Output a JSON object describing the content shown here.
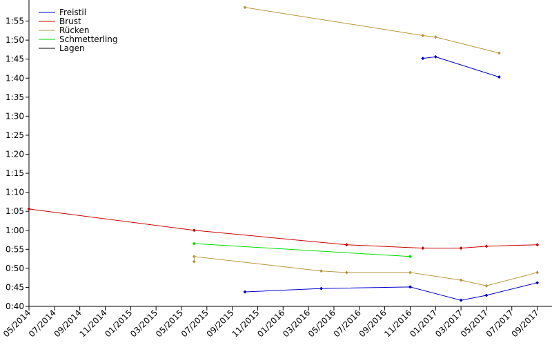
{
  "chart_data": {
    "type": "line",
    "series": [
      {
        "name": "Freistil",
        "color": "#0000cc",
        "x": [
          "2015-10",
          "2016-04",
          "2016-11",
          "2017-03",
          "2017-05",
          "2017-09",
          null,
          "2016-12",
          "2017-01",
          "2017-06"
        ],
        "values": [
          43.8,
          44.7,
          45.1,
          41.6,
          42.9,
          46.2,
          null,
          105.2,
          105.6,
          100.3
        ]
      },
      {
        "name": "Brust",
        "color": "#cc0000",
        "x": [
          "2014-05",
          "2015-06",
          "2016-06",
          "2016-12",
          "2017-03",
          "2017-05",
          "2017-09"
        ],
        "values": [
          65.6,
          60.0,
          56.2,
          55.3,
          55.3,
          55.8,
          56.2
        ]
      },
      {
        "name": "Rücken",
        "color": "#b8963e",
        "x": [
          "2015-06",
          "2015-06",
          "2016-04",
          "2016-06",
          "2016-11",
          "2017-03",
          "2017-05",
          "2017-09",
          null,
          "2015-10",
          "2016-12",
          "2017-01",
          "2017-06"
        ],
        "values": [
          51.8,
          53.1,
          49.3,
          48.9,
          48.9,
          46.9,
          45.4,
          48.9,
          null,
          118.6,
          111.2,
          110.8,
          106.6
        ]
      },
      {
        "name": "Schmetterling",
        "color": "#00dd00",
        "x": [
          "2015-06",
          "2016-11"
        ],
        "values": [
          56.5,
          53.1
        ]
      },
      {
        "name": "Lagen",
        "color": "#000000",
        "x": [],
        "values": []
      }
    ],
    "xlim": [
      "2014-05",
      "2017-10"
    ],
    "xticks": [
      {
        "value": "2014-05",
        "label": "05/2014"
      },
      {
        "value": "2014-07",
        "label": "07/2014"
      },
      {
        "value": "2014-09",
        "label": "09/2014"
      },
      {
        "value": "2014-11",
        "label": "11/2014"
      },
      {
        "value": "2015-01",
        "label": "01/2015"
      },
      {
        "value": "2015-03",
        "label": "03/2015"
      },
      {
        "value": "2015-05",
        "label": "05/2015"
      },
      {
        "value": "2015-07",
        "label": "07/2015"
      },
      {
        "value": "2015-09",
        "label": "09/2015"
      },
      {
        "value": "2015-11",
        "label": "11/2015"
      },
      {
        "value": "2016-01",
        "label": "01/2016"
      },
      {
        "value": "2016-03",
        "label": "03/2016"
      },
      {
        "value": "2016-05",
        "label": "05/2016"
      },
      {
        "value": "2016-07",
        "label": "07/2016"
      },
      {
        "value": "2016-09",
        "label": "09/2016"
      },
      {
        "value": "2016-11",
        "label": "11/2016"
      },
      {
        "value": "2017-01",
        "label": "01/2017"
      },
      {
        "value": "2017-03",
        "label": "03/2017"
      },
      {
        "value": "2017-05",
        "label": "05/2017"
      },
      {
        "value": "2017-07",
        "label": "07/2017"
      },
      {
        "value": "2017-09",
        "label": "09/2017"
      }
    ],
    "ylim": [
      40,
      120
    ],
    "yticks": [
      {
        "value": 40,
        "label": "0:40"
      },
      {
        "value": 45,
        "label": "0:45"
      },
      {
        "value": 50,
        "label": "0:50"
      },
      {
        "value": 55,
        "label": "0:55"
      },
      {
        "value": 60,
        "label": "1:00"
      },
      {
        "value": 65,
        "label": "1:05"
      },
      {
        "value": 70,
        "label": "1:10"
      },
      {
        "value": 75,
        "label": "1:15"
      },
      {
        "value": 80,
        "label": "1:20"
      },
      {
        "value": 85,
        "label": "1:25"
      },
      {
        "value": 90,
        "label": "1:30"
      },
      {
        "value": 95,
        "label": "1:35"
      },
      {
        "value": 100,
        "label": "1:40"
      },
      {
        "value": 105,
        "label": "1:45"
      },
      {
        "value": 110,
        "label": "1:50"
      },
      {
        "value": 115,
        "label": "1:55"
      }
    ],
    "legend": "upper-left"
  }
}
